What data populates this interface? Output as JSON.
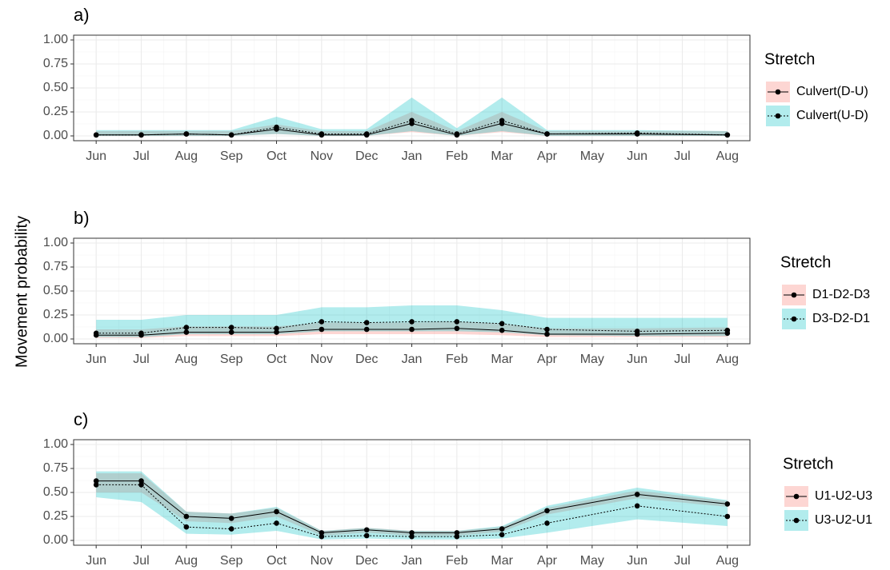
{
  "ylabel": "Movement probability",
  "chart_data": [
    {
      "type": "line",
      "title": "a)",
      "legend_title": "Stretch",
      "categories": [
        "Jun",
        "Jul",
        "Aug",
        "Sep",
        "Oct",
        "Nov",
        "Dec",
        "Jan",
        "Feb",
        "Mar",
        "Apr",
        "May",
        "Jun",
        "Jul",
        "Aug"
      ],
      "ylim": [
        -0.05,
        1.05
      ],
      "yticks": [
        {
          "value": 0,
          "label": "0.00"
        },
        {
          "value": 0.25,
          "label": "0.25"
        },
        {
          "value": 0.5,
          "label": "0.50"
        },
        {
          "value": 0.75,
          "label": "0.75"
        },
        {
          "value": 1,
          "label": "1.00"
        }
      ],
      "grid": true,
      "series": [
        {
          "name": "Culvert(D-U)",
          "color": "#000000",
          "band_color": "#f8766d",
          "linestyle": "solid",
          "values": [
            0.01,
            0.01,
            0.02,
            0.01,
            0.07,
            0.01,
            0.01,
            0.13,
            0.01,
            0.13,
            0.02,
            null,
            0.02,
            null,
            0.01
          ],
          "lower": [
            0.0,
            0.0,
            0.0,
            0.0,
            0.02,
            0.0,
            0.0,
            0.04,
            0.0,
            0.04,
            0.0,
            null,
            0.0,
            null,
            0.0
          ],
          "upper": [
            0.05,
            0.05,
            0.05,
            0.05,
            0.12,
            0.05,
            0.05,
            0.25,
            0.05,
            0.25,
            0.05,
            null,
            0.05,
            null,
            0.05
          ]
        },
        {
          "name": "Culvert(U-D)",
          "color": "#000000",
          "band_color": "#00bfc4",
          "linestyle": "dotted",
          "values": [
            0.01,
            0.01,
            0.02,
            0.01,
            0.09,
            0.02,
            0.02,
            0.16,
            0.02,
            0.16,
            0.02,
            null,
            0.03,
            null,
            0.01
          ],
          "lower": [
            0.0,
            0.0,
            0.0,
            0.0,
            0.02,
            0.0,
            0.0,
            0.05,
            0.0,
            0.05,
            0.0,
            null,
            0.0,
            null,
            0.0
          ],
          "upper": [
            0.06,
            0.06,
            0.06,
            0.06,
            0.2,
            0.07,
            0.07,
            0.4,
            0.08,
            0.4,
            0.06,
            null,
            0.06,
            null,
            0.05
          ]
        }
      ]
    },
    {
      "type": "line",
      "title": "b)",
      "legend_title": "Stretch",
      "categories": [
        "Jun",
        "Jul",
        "Aug",
        "Sep",
        "Oct",
        "Nov",
        "Dec",
        "Jan",
        "Feb",
        "Mar",
        "Apr",
        "May",
        "Jun",
        "Jul",
        "Aug"
      ],
      "ylim": [
        -0.05,
        1.05
      ],
      "yticks": [
        {
          "value": 0,
          "label": "0.00"
        },
        {
          "value": 0.25,
          "label": "0.25"
        },
        {
          "value": 0.5,
          "label": "0.50"
        },
        {
          "value": 0.75,
          "label": "0.75"
        },
        {
          "value": 1,
          "label": "1.00"
        }
      ],
      "grid": true,
      "series": [
        {
          "name": "D1-D2-D3",
          "color": "#000000",
          "band_color": "#f8766d",
          "linestyle": "solid",
          "values": [
            0.04,
            0.04,
            0.07,
            0.07,
            0.07,
            0.1,
            0.1,
            0.1,
            0.11,
            0.09,
            0.05,
            null,
            0.05,
            null,
            0.06
          ],
          "lower": [
            0.01,
            0.01,
            0.03,
            0.03,
            0.03,
            0.05,
            0.05,
            0.05,
            0.05,
            0.04,
            0.02,
            null,
            0.02,
            null,
            0.02
          ],
          "upper": [
            0.1,
            0.1,
            0.13,
            0.13,
            0.13,
            0.17,
            0.17,
            0.17,
            0.18,
            0.16,
            0.11,
            null,
            0.11,
            null,
            0.12
          ]
        },
        {
          "name": "D3-D2-D1",
          "color": "#000000",
          "band_color": "#00bfc4",
          "linestyle": "dotted",
          "values": [
            0.06,
            0.06,
            0.12,
            0.12,
            0.11,
            0.18,
            0.17,
            0.18,
            0.18,
            0.16,
            0.1,
            null,
            0.08,
            null,
            0.09
          ],
          "lower": [
            0.02,
            0.02,
            0.05,
            0.05,
            0.05,
            0.08,
            0.08,
            0.08,
            0.08,
            0.07,
            0.04,
            null,
            0.03,
            null,
            0.03
          ],
          "upper": [
            0.2,
            0.2,
            0.25,
            0.25,
            0.25,
            0.33,
            0.33,
            0.35,
            0.35,
            0.3,
            0.22,
            null,
            0.22,
            null,
            0.22
          ]
        }
      ]
    },
    {
      "type": "line",
      "title": "c)",
      "legend_title": "Stretch",
      "categories": [
        "Jun",
        "Jul",
        "Aug",
        "Sep",
        "Oct",
        "Nov",
        "Dec",
        "Jan",
        "Feb",
        "Mar",
        "Apr",
        "May",
        "Jun",
        "Jul",
        "Aug"
      ],
      "ylim": [
        -0.05,
        1.05
      ],
      "yticks": [
        {
          "value": 0,
          "label": "0.00"
        },
        {
          "value": 0.25,
          "label": "0.25"
        },
        {
          "value": 0.5,
          "label": "0.50"
        },
        {
          "value": 0.75,
          "label": "0.75"
        },
        {
          "value": 1,
          "label": "1.00"
        }
      ],
      "grid": true,
      "series": [
        {
          "name": "U1-U2-U3",
          "color": "#000000",
          "band_color": "#f8766d",
          "linestyle": "solid",
          "values": [
            0.62,
            0.62,
            0.25,
            0.23,
            0.3,
            0.08,
            0.11,
            0.08,
            0.08,
            0.12,
            0.31,
            null,
            0.48,
            null,
            0.38
          ],
          "lower": [
            0.5,
            0.5,
            0.2,
            0.18,
            0.25,
            0.05,
            0.08,
            0.05,
            0.05,
            0.09,
            0.27,
            null,
            0.44,
            null,
            0.35
          ],
          "upper": [
            0.7,
            0.7,
            0.3,
            0.28,
            0.34,
            0.1,
            0.13,
            0.1,
            0.1,
            0.14,
            0.34,
            null,
            0.52,
            null,
            0.41
          ]
        },
        {
          "name": "U3-U2-U1",
          "color": "#000000",
          "band_color": "#00bfc4",
          "linestyle": "dotted",
          "values": [
            0.58,
            0.58,
            0.14,
            0.12,
            0.18,
            0.04,
            0.05,
            0.04,
            0.04,
            0.06,
            0.18,
            null,
            0.36,
            null,
            0.25
          ],
          "lower": [
            0.45,
            0.4,
            0.07,
            0.06,
            0.1,
            0.01,
            0.02,
            0.01,
            0.01,
            0.02,
            0.08,
            null,
            0.22,
            null,
            0.15
          ],
          "upper": [
            0.72,
            0.72,
            0.3,
            0.28,
            0.35,
            0.1,
            0.13,
            0.1,
            0.1,
            0.15,
            0.36,
            null,
            0.55,
            null,
            0.42
          ]
        }
      ]
    }
  ]
}
